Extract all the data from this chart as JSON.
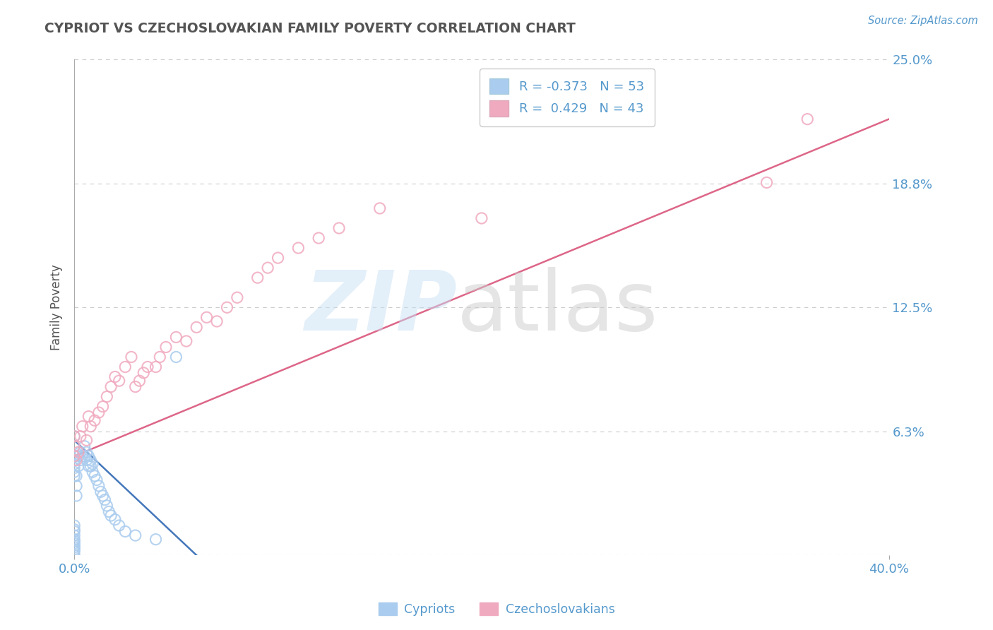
{
  "title": "CYPRIOT VS CZECHOSLOVAKIAN FAMILY POVERTY CORRELATION CHART",
  "source_text": "Source: ZipAtlas.com",
  "ylabel": "Family Poverty",
  "xlim": [
    0.0,
    0.4
  ],
  "ylim": [
    0.0,
    0.25
  ],
  "ytick_vals": [
    0.0,
    0.0625,
    0.125,
    0.1875,
    0.25
  ],
  "ytick_labels": [
    "",
    "6.3%",
    "12.5%",
    "18.8%",
    "25.0%"
  ],
  "xtick_vals": [
    0.0,
    0.4
  ],
  "xtick_labels": [
    "0.0%",
    "40.0%"
  ],
  "cypriot_color": "#aaccee",
  "czechoslovakian_color": "#f0aabf",
  "cypriot_line_color": "#4477bb",
  "czechoslovakian_line_color": "#dd6688",
  "cypriot_R": -0.373,
  "cypriot_N": 53,
  "czechoslovakian_R": 0.429,
  "czechoslovakian_N": 43,
  "background_color": "#ffffff",
  "grid_color": "#cccccc",
  "text_color": "#5599cc",
  "title_color": "#555555",
  "cypriot_x": [
    0.0,
    0.0,
    0.0,
    0.0,
    0.0,
    0.0,
    0.0,
    0.0,
    0.0,
    0.0,
    0.0,
    0.0,
    0.0,
    0.0,
    0.0,
    0.0,
    0.0,
    0.0,
    0.0,
    0.0,
    0.001,
    0.001,
    0.001,
    0.002,
    0.002,
    0.003,
    0.003,
    0.004,
    0.005,
    0.005,
    0.006,
    0.006,
    0.007,
    0.007,
    0.008,
    0.008,
    0.009,
    0.009,
    0.01,
    0.011,
    0.012,
    0.013,
    0.014,
    0.015,
    0.016,
    0.017,
    0.018,
    0.02,
    0.022,
    0.025,
    0.03,
    0.04,
    0.05
  ],
  "cypriot_y": [
    0.0,
    0.002,
    0.003,
    0.004,
    0.005,
    0.006,
    0.007,
    0.008,
    0.01,
    0.012,
    0.013,
    0.015,
    0.04,
    0.042,
    0.044,
    0.046,
    0.048,
    0.05,
    0.055,
    0.06,
    0.03,
    0.035,
    0.04,
    0.045,
    0.05,
    0.048,
    0.052,
    0.05,
    0.05,
    0.055,
    0.048,
    0.052,
    0.045,
    0.05,
    0.045,
    0.048,
    0.042,
    0.046,
    0.04,
    0.038,
    0.035,
    0.032,
    0.03,
    0.028,
    0.025,
    0.022,
    0.02,
    0.018,
    0.015,
    0.012,
    0.01,
    0.008,
    0.1
  ],
  "czechoslovakian_x": [
    0.0,
    0.0,
    0.0,
    0.001,
    0.002,
    0.003,
    0.004,
    0.006,
    0.007,
    0.008,
    0.01,
    0.012,
    0.014,
    0.016,
    0.018,
    0.02,
    0.022,
    0.025,
    0.028,
    0.03,
    0.032,
    0.034,
    0.036,
    0.04,
    0.042,
    0.045,
    0.05,
    0.055,
    0.06,
    0.065,
    0.07,
    0.075,
    0.08,
    0.09,
    0.095,
    0.1,
    0.11,
    0.12,
    0.13,
    0.15,
    0.2,
    0.34,
    0.36
  ],
  "czechoslovakian_y": [
    0.05,
    0.055,
    0.06,
    0.048,
    0.052,
    0.06,
    0.065,
    0.058,
    0.07,
    0.065,
    0.068,
    0.072,
    0.075,
    0.08,
    0.085,
    0.09,
    0.088,
    0.095,
    0.1,
    0.085,
    0.088,
    0.092,
    0.095,
    0.095,
    0.1,
    0.105,
    0.11,
    0.108,
    0.115,
    0.12,
    0.118,
    0.125,
    0.13,
    0.14,
    0.145,
    0.15,
    0.155,
    0.16,
    0.165,
    0.175,
    0.17,
    0.188,
    0.22
  ],
  "cypriot_line_x0": 0.0,
  "cypriot_line_x1": 0.06,
  "cypriot_line_y0": 0.058,
  "cypriot_line_y1": 0.0,
  "czk_line_x0": 0.0,
  "czk_line_x1": 0.4,
  "czk_line_y0": 0.05,
  "czk_line_y1": 0.22
}
